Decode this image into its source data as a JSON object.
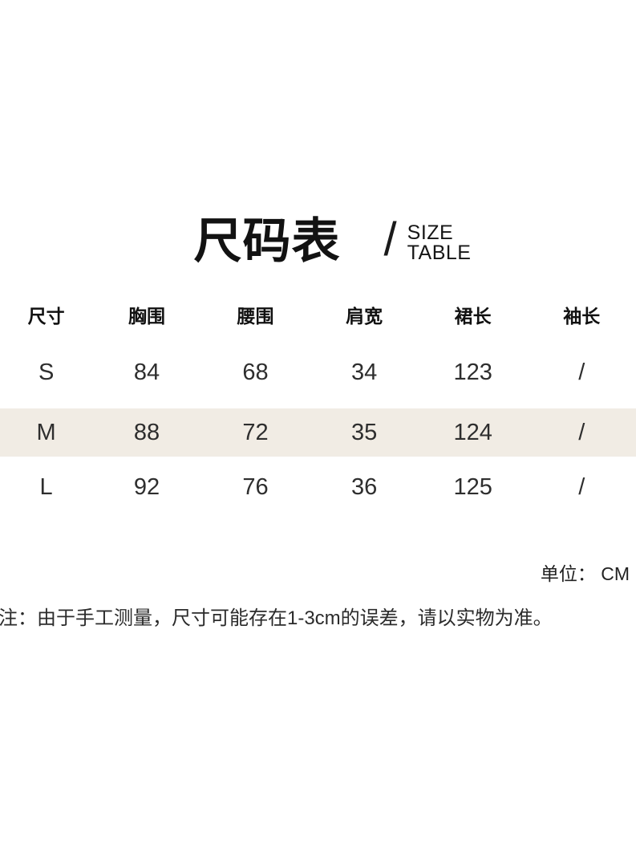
{
  "title": {
    "cn": "尺码表",
    "divider": "/",
    "en_lines": [
      "SIZE",
      "TABLE"
    ]
  },
  "table": {
    "columns": [
      "尺寸",
      "胸围",
      "腰围",
      "肩宽",
      "裙长",
      "袖长"
    ],
    "rows": [
      {
        "cells": [
          "S",
          "84",
          "68",
          "34",
          "123",
          "/"
        ],
        "highlighted": false
      },
      {
        "cells": [
          "M",
          "88",
          "72",
          "35",
          "124",
          "/"
        ],
        "highlighted": true
      },
      {
        "cells": [
          "L",
          "92",
          "76",
          "36",
          "125",
          "/"
        ],
        "highlighted": false
      }
    ]
  },
  "unit_label": "单位： CM",
  "note": "注：由于手工测量，尺寸可能存在1-3cm的误差，请以实物为准。",
  "colors": {
    "background": "#ffffff",
    "text": "#1c1c1c",
    "highlight_row": "#f1ece4"
  },
  "chart_data": {
    "type": "table",
    "title": "尺码表 / SIZE TABLE",
    "columns": [
      "尺寸",
      "胸围",
      "腰围",
      "肩宽",
      "裙长",
      "袖长"
    ],
    "rows": [
      [
        "S",
        84,
        68,
        34,
        123,
        null
      ],
      [
        "M",
        88,
        72,
        35,
        124,
        null
      ],
      [
        "L",
        92,
        76,
        36,
        125,
        null
      ]
    ],
    "unit": "CM",
    "highlighted_row": "M",
    "notes": "袖长 column shows \"/\" (not applicable); 注：由于手工测量，尺寸可能存在1-3cm的误差，请以实物为准。"
  }
}
